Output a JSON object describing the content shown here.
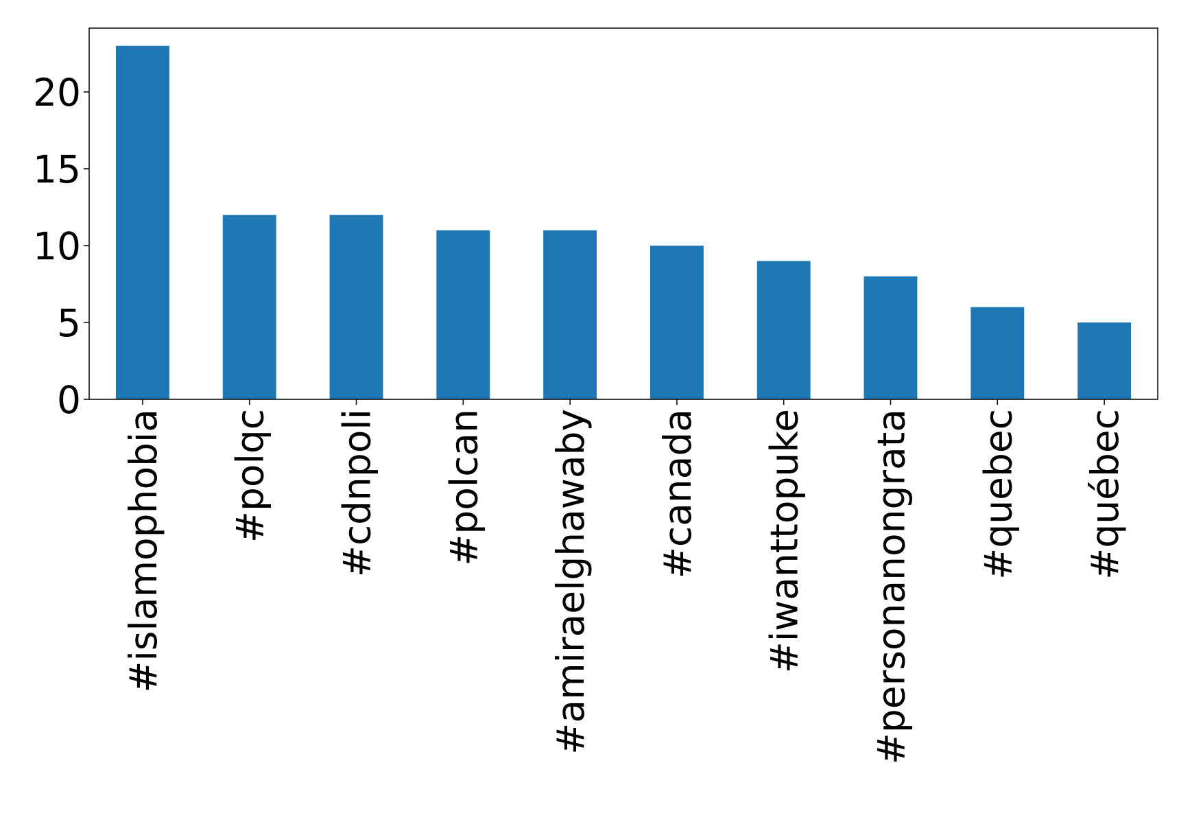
{
  "chart_data": {
    "type": "bar",
    "categories": [
      "#islamophobia",
      "#polqc",
      "#cdnpoli",
      "#polcan",
      "#amiraelghawaby",
      "#canada",
      "#iwanttopuke",
      "#personanongrata",
      "#quebec",
      "#québec"
    ],
    "values": [
      23,
      12,
      12,
      11,
      11,
      10,
      9,
      8,
      6,
      5
    ],
    "color": "#1f77b4",
    "ylim": [
      0,
      24.15
    ],
    "yticks": [
      0,
      5,
      10,
      15,
      20
    ],
    "grid": false
  }
}
